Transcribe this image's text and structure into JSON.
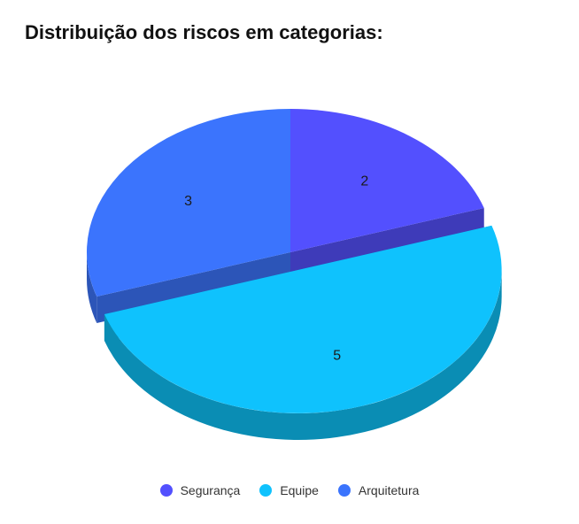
{
  "chart_data": {
    "type": "pie",
    "title": "Distribuição dos riscos em categorias:",
    "categories": [
      "Segurança",
      "Equipe",
      "Arquitetura"
    ],
    "values": [
      2,
      5,
      3
    ],
    "colors": [
      "#5350fe",
      "#0fc2fd",
      "#3b74fd"
    ],
    "side_colors": [
      "#3e3bb9",
      "#0a8db4",
      "#2c55b8"
    ],
    "exploded": "Equipe",
    "three_d": true,
    "legend": "bottom",
    "data_labels": true
  }
}
